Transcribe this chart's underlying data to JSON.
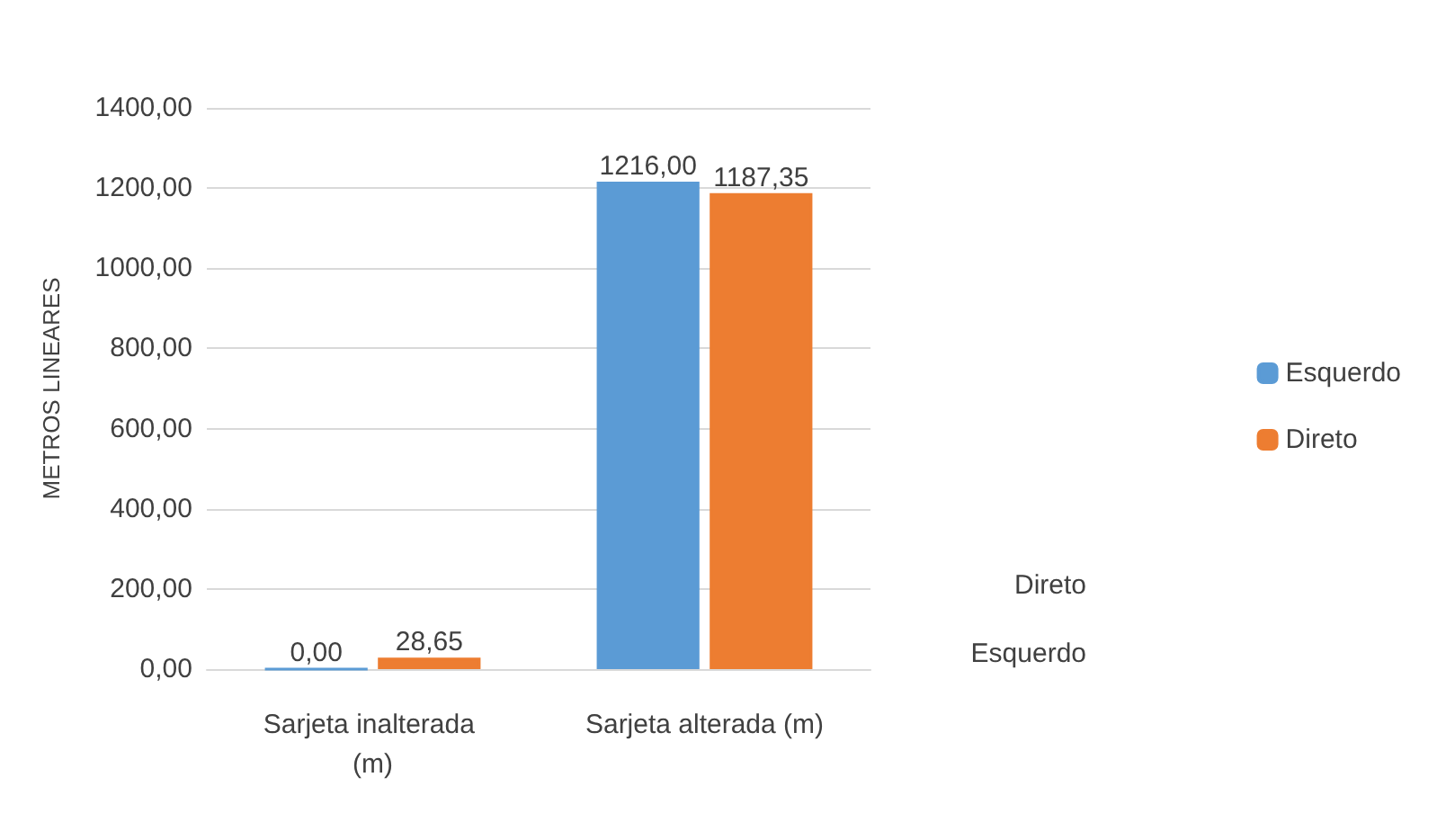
{
  "chart_data": {
    "type": "bar",
    "ylabel": "METROS LINEARES",
    "categories": [
      "Sarjeta inalterada (m)",
      "Sarjeta alterada (m)"
    ],
    "series": [
      {
        "name": "Esquerdo",
        "color": "#5b9bd5",
        "values": [
          0,
          1216
        ],
        "value_labels": [
          "0,00",
          "1216,00"
        ]
      },
      {
        "name": "Direto",
        "color": "#ed7d31",
        "values": [
          28.65,
          1187.35
        ],
        "value_labels": [
          "28,65",
          "1187,35"
        ]
      }
    ],
    "ylim": [
      0,
      1400
    ],
    "yticks": [
      {
        "value": 0,
        "label": "0,00"
      },
      {
        "value": 200,
        "label": "200,00"
      },
      {
        "value": 400,
        "label": "400,00"
      },
      {
        "value": 600,
        "label": "600,00"
      },
      {
        "value": 800,
        "label": "800,00"
      },
      {
        "value": 1000,
        "label": "1000,00"
      },
      {
        "value": 1200,
        "label": "1200,00"
      },
      {
        "value": 1400,
        "label": "1400,00"
      }
    ],
    "grid": true,
    "legend": "right",
    "annotations": [
      "Direto",
      "Esquerdo"
    ]
  }
}
